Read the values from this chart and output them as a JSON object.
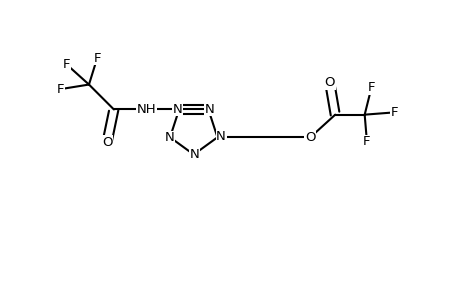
{
  "background_color": "#ffffff",
  "line_color": "#000000",
  "line_width": 1.5,
  "font_size": 9.5,
  "figsize": [
    4.6,
    3.0
  ],
  "dpi": 100,
  "xlim": [
    0,
    10
  ],
  "ylim": [
    0,
    6.5
  ]
}
